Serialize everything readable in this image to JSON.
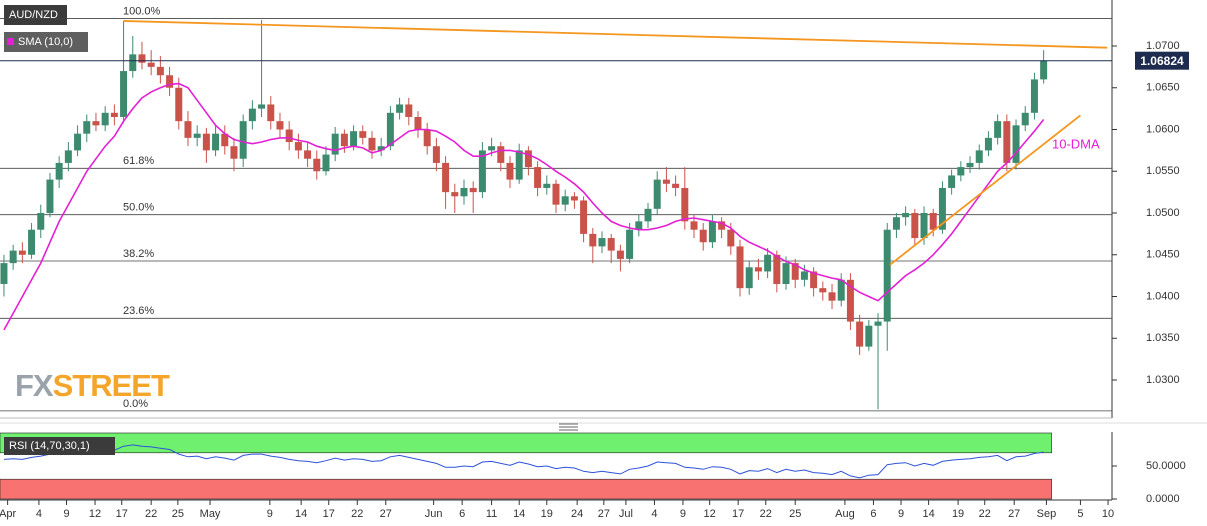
{
  "chart_data": {
    "type": "candlestick",
    "title": "AUD/NZD",
    "colors": {
      "up": "#3d8b6f",
      "down": "#c9524b"
    },
    "ohlc": [
      [
        1.0415,
        1.045,
        1.04,
        1.044
      ],
      [
        1.044,
        1.0462,
        1.0432,
        1.0455
      ],
      [
        1.0455,
        1.0465,
        1.044,
        1.045
      ],
      [
        1.045,
        1.0488,
        1.0445,
        1.048
      ],
      [
        1.048,
        1.051,
        1.047,
        1.05
      ],
      [
        1.05,
        1.0548,
        1.0495,
        1.054
      ],
      [
        1.054,
        1.0568,
        1.053,
        1.056
      ],
      [
        1.056,
        1.0585,
        1.055,
        1.0575
      ],
      [
        1.0575,
        1.0605,
        1.0568,
        1.0595
      ],
      [
        1.0595,
        1.0618,
        1.0585,
        1.061
      ],
      [
        1.061,
        1.062,
        1.0598,
        1.0605
      ],
      [
        1.0605,
        1.0628,
        1.0598,
        1.062
      ],
      [
        1.062,
        1.063,
        1.0605,
        1.0615
      ],
      [
        1.0615,
        1.073,
        1.0608,
        1.067
      ],
      [
        1.067,
        1.0712,
        1.0662,
        1.069
      ],
      [
        1.069,
        1.0705,
        1.0672,
        1.068
      ],
      [
        1.068,
        1.0695,
        1.0665,
        1.0675
      ],
      [
        1.0675,
        1.0688,
        1.0655,
        1.0665
      ],
      [
        1.0665,
        1.0675,
        1.064,
        1.065
      ],
      [
        1.065,
        1.0662,
        1.06,
        1.061
      ],
      [
        1.061,
        1.0622,
        1.058,
        1.059
      ],
      [
        1.059,
        1.0605,
        1.058,
        1.0595
      ],
      [
        1.0595,
        1.0602,
        1.056,
        1.0575
      ],
      [
        1.0575,
        1.0605,
        1.0568,
        1.0595
      ],
      [
        1.0595,
        1.0605,
        1.057,
        1.058
      ],
      [
        1.058,
        1.059,
        1.055,
        1.0565
      ],
      [
        1.0565,
        1.0618,
        1.0555,
        1.061
      ],
      [
        1.061,
        1.0635,
        1.06,
        1.0625
      ],
      [
        1.0625,
        1.0731,
        1.0615,
        1.063
      ],
      [
        1.063,
        1.064,
        1.06,
        1.061
      ],
      [
        1.061,
        1.062,
        1.059,
        1.06
      ],
      [
        1.06,
        1.061,
        1.0575,
        1.0585
      ],
      [
        1.0585,
        1.0595,
        1.0565,
        1.0575
      ],
      [
        1.0575,
        1.0585,
        1.0555,
        1.0565
      ],
      [
        1.0565,
        1.0575,
        1.054,
        1.055
      ],
      [
        1.055,
        1.058,
        1.0545,
        1.057
      ],
      [
        1.057,
        1.0603,
        1.0562,
        1.0595
      ],
      [
        1.0595,
        1.06,
        1.0572,
        1.058
      ],
      [
        1.058,
        1.0605,
        1.0575,
        1.0598
      ],
      [
        1.0598,
        1.0605,
        1.0582,
        1.059
      ],
      [
        1.059,
        1.0598,
        1.0565,
        1.0575
      ],
      [
        1.0575,
        1.059,
        1.0568,
        1.058
      ],
      [
        1.058,
        1.0628,
        1.0575,
        1.062
      ],
      [
        1.062,
        1.0638,
        1.0612,
        1.063
      ],
      [
        1.063,
        1.0638,
        1.0605,
        1.0615
      ],
      [
        1.0615,
        1.0622,
        1.059,
        1.06
      ],
      [
        1.06,
        1.0608,
        1.057,
        1.058
      ],
      [
        1.058,
        1.059,
        1.055,
        1.056
      ],
      [
        1.056,
        1.0568,
        1.0505,
        1.0525
      ],
      [
        1.0525,
        1.0535,
        1.05,
        1.052
      ],
      [
        1.052,
        1.054,
        1.051,
        1.053
      ],
      [
        1.053,
        1.0538,
        1.05,
        1.0525
      ],
      [
        1.0525,
        1.0585,
        1.0518,
        1.0575
      ],
      [
        1.0575,
        1.059,
        1.0568,
        1.058
      ],
      [
        1.058,
        1.0585,
        1.055,
        1.056
      ],
      [
        1.056,
        1.0568,
        1.053,
        1.054
      ],
      [
        1.054,
        1.0583,
        1.0535,
        1.0575
      ],
      [
        1.0575,
        1.058,
        1.0545,
        1.0555
      ],
      [
        1.0555,
        1.0562,
        1.052,
        1.053
      ],
      [
        1.053,
        1.0545,
        1.0522,
        1.0535
      ],
      [
        1.0535,
        1.054,
        1.05,
        1.051
      ],
      [
        1.051,
        1.0528,
        1.0502,
        1.052
      ],
      [
        1.052,
        1.0525,
        1.0505,
        1.0515
      ],
      [
        1.0515,
        1.052,
        1.0465,
        1.0475
      ],
      [
        1.0475,
        1.0482,
        1.044,
        1.046
      ],
      [
        1.046,
        1.0478,
        1.0452,
        1.047
      ],
      [
        1.047,
        1.0475,
        1.044,
        1.0455
      ],
      [
        1.0455,
        1.0462,
        1.043,
        1.0445
      ],
      [
        1.0445,
        1.0488,
        1.044,
        1.048
      ],
      [
        1.048,
        1.0498,
        1.0472,
        1.049
      ],
      [
        1.049,
        1.0512,
        1.0482,
        1.0505
      ],
      [
        1.0505,
        1.055,
        1.0498,
        1.054
      ],
      [
        1.054,
        1.0555,
        1.0525,
        1.0535
      ],
      [
        1.0535,
        1.0545,
        1.052,
        1.053
      ],
      [
        1.053,
        1.0555,
        1.048,
        1.049
      ],
      [
        1.049,
        1.0498,
        1.047,
        1.048
      ],
      [
        1.048,
        1.0488,
        1.0455,
        1.0465
      ],
      [
        1.0465,
        1.0498,
        1.0458,
        1.049
      ],
      [
        1.049,
        1.0495,
        1.047,
        1.048
      ],
      [
        1.048,
        1.0488,
        1.045,
        1.046
      ],
      [
        1.046,
        1.0468,
        1.04,
        1.041
      ],
      [
        1.041,
        1.0442,
        1.0402,
        1.0435
      ],
      [
        1.0435,
        1.0445,
        1.042,
        1.043
      ],
      [
        1.043,
        1.0458,
        1.0422,
        1.045
      ],
      [
        1.045,
        1.0455,
        1.0405,
        1.0415
      ],
      [
        1.0415,
        1.0448,
        1.0408,
        1.044
      ],
      [
        1.044,
        1.0445,
        1.041,
        1.042
      ],
      [
        1.042,
        1.0438,
        1.0412,
        1.043
      ],
      [
        1.043,
        1.0435,
        1.04,
        1.041
      ],
      [
        1.041,
        1.0418,
        1.0395,
        1.0405
      ],
      [
        1.0405,
        1.0415,
        1.0385,
        1.0395
      ],
      [
        1.0395,
        1.0428,
        1.0388,
        1.042
      ],
      [
        1.042,
        1.0428,
        1.036,
        1.037
      ],
      [
        1.037,
        1.0378,
        1.033,
        1.034
      ],
      [
        1.034,
        1.0372,
        1.0335,
        1.0365
      ],
      [
        1.0365,
        1.038,
        1.0265,
        1.037
      ],
      [
        1.037,
        1.0488,
        1.0335,
        1.048
      ],
      [
        1.048,
        1.05,
        1.047,
        1.0495
      ],
      [
        1.0495,
        1.0508,
        1.0485,
        1.05
      ],
      [
        1.05,
        1.0505,
        1.046,
        1.047
      ],
      [
        1.047,
        1.0508,
        1.0462,
        1.05
      ],
      [
        1.05,
        1.0505,
        1.0472,
        1.048
      ],
      [
        1.048,
        1.0538,
        1.0475,
        1.053
      ],
      [
        1.053,
        1.0552,
        1.0522,
        1.0545
      ],
      [
        1.0545,
        1.0562,
        1.0538,
        1.0555
      ],
      [
        1.0555,
        1.0568,
        1.0548,
        1.056
      ],
      [
        1.056,
        1.0582,
        1.0552,
        1.0575
      ],
      [
        1.0575,
        1.0598,
        1.0568,
        1.059
      ],
      [
        1.059,
        1.0618,
        1.0582,
        1.061
      ],
      [
        1.061,
        1.0618,
        1.055,
        1.056
      ],
      [
        1.056,
        1.0612,
        1.0552,
        1.0605
      ],
      [
        1.0605,
        1.0628,
        1.0598,
        1.062
      ],
      [
        1.062,
        1.0668,
        1.0612,
        1.066
      ],
      [
        1.066,
        1.0695,
        1.0655,
        1.06824
      ]
    ],
    "series": [
      {
        "name": "SMA (10,0)",
        "color": "#e41fd6",
        "values": [
          1.036,
          1.038,
          1.04,
          1.042,
          1.044,
          1.0465,
          1.049,
          1.051,
          1.053,
          1.055,
          1.0565,
          1.058,
          1.0592,
          1.061,
          1.0625,
          1.0638,
          1.0645,
          1.065,
          1.0654,
          1.0655,
          1.065,
          1.0635,
          1.062,
          1.0605,
          1.0595,
          1.0588,
          1.0585,
          1.0583,
          1.0585,
          1.0588,
          1.059,
          1.059,
          1.0587,
          1.0585,
          1.058,
          1.0577,
          1.0575,
          1.0578,
          1.058,
          1.0578,
          1.0572,
          1.0575,
          1.0582,
          1.059,
          1.0598,
          1.06,
          1.06,
          1.0598,
          1.0592,
          1.0585,
          1.0575,
          1.0568,
          1.0568,
          1.0572,
          1.0575,
          1.0575,
          1.0573,
          1.057,
          1.0565,
          1.0558,
          1.055,
          1.0543,
          1.0535,
          1.0525,
          1.0512,
          1.05,
          1.049,
          1.0485,
          1.0482,
          1.048,
          1.048,
          1.0482,
          1.0485,
          1.049,
          1.0493,
          1.0494,
          1.0492,
          1.049,
          1.0488,
          1.0482,
          1.0472,
          1.0465,
          1.046,
          1.0455,
          1.0448,
          1.0442,
          1.0438,
          1.0432,
          1.0428,
          1.0425,
          1.0422,
          1.042,
          1.0412,
          1.0405,
          1.04,
          1.0395,
          1.0405,
          1.0415,
          1.0425,
          1.0432,
          1.044,
          1.045,
          1.0462,
          1.0475,
          1.049,
          1.0505,
          1.052,
          1.0535,
          1.055,
          1.056,
          1.0572,
          1.0585,
          1.0598,
          1.0612
        ]
      }
    ],
    "annotation": "10-DMA",
    "last_price": 1.06824,
    "fib_levels": [
      {
        "label": "100.0%",
        "value": 1.0733
      },
      {
        "label": "61.8%",
        "value": 1.05535
      },
      {
        "label": "50.0%",
        "value": 1.0498
      },
      {
        "label": "38.2%",
        "value": 1.04425
      },
      {
        "label": "23.6%",
        "value": 1.03739
      },
      {
        "label": "0.0%",
        "value": 1.0263
      }
    ],
    "trendlines": [
      {
        "color": "#f5961e",
        "x": [
          13,
          119.9
        ],
        "y": [
          1.073,
          1.0698
        ]
      },
      {
        "color": "#f5961e",
        "x": [
          96.3,
          117
        ],
        "y": [
          1.0438,
          1.0617
        ]
      }
    ],
    "watermark": [
      "FX",
      "STREET"
    ],
    "xlim": [
      -0.43,
      120.43
    ],
    "xticks": [
      {
        "value": 0.4,
        "label": "Apr"
      },
      {
        "value": 3.8,
        "label": "4"
      },
      {
        "value": 6.8,
        "label": "9"
      },
      {
        "value": 9.9,
        "label": "12"
      },
      {
        "value": 12.8,
        "label": "17"
      },
      {
        "value": 16,
        "label": "22"
      },
      {
        "value": 18.9,
        "label": "25"
      },
      {
        "value": 22.4,
        "label": "May"
      },
      {
        "value": 28.9,
        "label": "9"
      },
      {
        "value": 32.3,
        "label": "14"
      },
      {
        "value": 35.3,
        "label": "17"
      },
      {
        "value": 38.4,
        "label": "22"
      },
      {
        "value": 41.5,
        "label": "27"
      },
      {
        "value": 46.7,
        "label": "Jun"
      },
      {
        "value": 49.8,
        "label": "6"
      },
      {
        "value": 53,
        "label": "11"
      },
      {
        "value": 56,
        "label": "14"
      },
      {
        "value": 59,
        "label": "19"
      },
      {
        "value": 62.3,
        "label": "24"
      },
      {
        "value": 65.2,
        "label": "27"
      },
      {
        "value": 67.6,
        "label": "Jul"
      },
      {
        "value": 70.7,
        "label": "4"
      },
      {
        "value": 73.8,
        "label": "9"
      },
      {
        "value": 76.7,
        "label": "12"
      },
      {
        "value": 79.8,
        "label": "17"
      },
      {
        "value": 82.8,
        "label": "22"
      },
      {
        "value": 86,
        "label": "25"
      },
      {
        "value": 91.4,
        "label": "Aug"
      },
      {
        "value": 94.5,
        "label": "6"
      },
      {
        "value": 97.5,
        "label": "9"
      },
      {
        "value": 100.5,
        "label": "14"
      },
      {
        "value": 103.7,
        "label": "19"
      },
      {
        "value": 106.6,
        "label": "22"
      },
      {
        "value": 109.8,
        "label": "27"
      },
      {
        "value": 113.3,
        "label": "Sep"
      },
      {
        "value": 117,
        "label": "5"
      },
      {
        "value": 120,
        "label": "10"
      }
    ],
    "ylim": [
      1.02545,
      1.07551
    ],
    "yticks": [
      {
        "value": 1.03,
        "label": "1.0300"
      },
      {
        "value": 1.035,
        "label": "1.0350"
      },
      {
        "value": 1.04,
        "label": "1.0400"
      },
      {
        "value": 1.045,
        "label": "1.0450"
      },
      {
        "value": 1.05,
        "label": "1.0500"
      },
      {
        "value": 1.055,
        "label": "1.0550"
      },
      {
        "value": 1.06,
        "label": "1.0600"
      },
      {
        "value": 1.065,
        "label": "1.0650"
      },
      {
        "value": 1.07,
        "label": "1.0700"
      }
    ],
    "rsi": {
      "name": "RSI (14,70,30,1)",
      "color": "#2d52d9",
      "values": [
        60,
        61,
        60,
        63,
        65,
        68,
        70,
        71,
        73,
        74,
        73,
        75,
        74,
        80,
        82,
        80,
        79,
        77,
        75,
        68,
        64,
        65,
        61,
        64,
        62,
        59,
        66,
        68,
        68,
        65,
        63,
        60,
        58,
        57,
        55,
        58,
        62,
        59,
        61,
        60,
        57,
        58,
        64,
        66,
        63,
        60,
        57,
        54,
        48,
        48,
        50,
        49,
        56,
        57,
        54,
        51,
        56,
        53,
        49,
        50,
        46,
        48,
        47,
        42,
        40,
        42,
        40,
        38,
        45,
        47,
        50,
        56,
        55,
        54,
        48,
        47,
        45,
        49,
        48,
        45,
        38,
        43,
        42,
        46,
        40,
        45,
        42,
        44,
        40,
        39,
        37,
        42,
        35,
        32,
        36,
        37,
        52,
        54,
        55,
        50,
        54,
        51,
        57,
        59,
        60,
        61,
        63,
        64,
        66,
        58,
        64,
        65,
        69,
        71
      ],
      "y2lim": [
        0,
        100
      ],
      "y2ticks": [
        {
          "value": 50,
          "label": "50.0000"
        },
        {
          "value": 0,
          "label": "0.0000"
        }
      ],
      "overbought": 70,
      "oversold": 30,
      "overbought_color": "#6ff06f",
      "oversold_color": "#f97272"
    }
  }
}
